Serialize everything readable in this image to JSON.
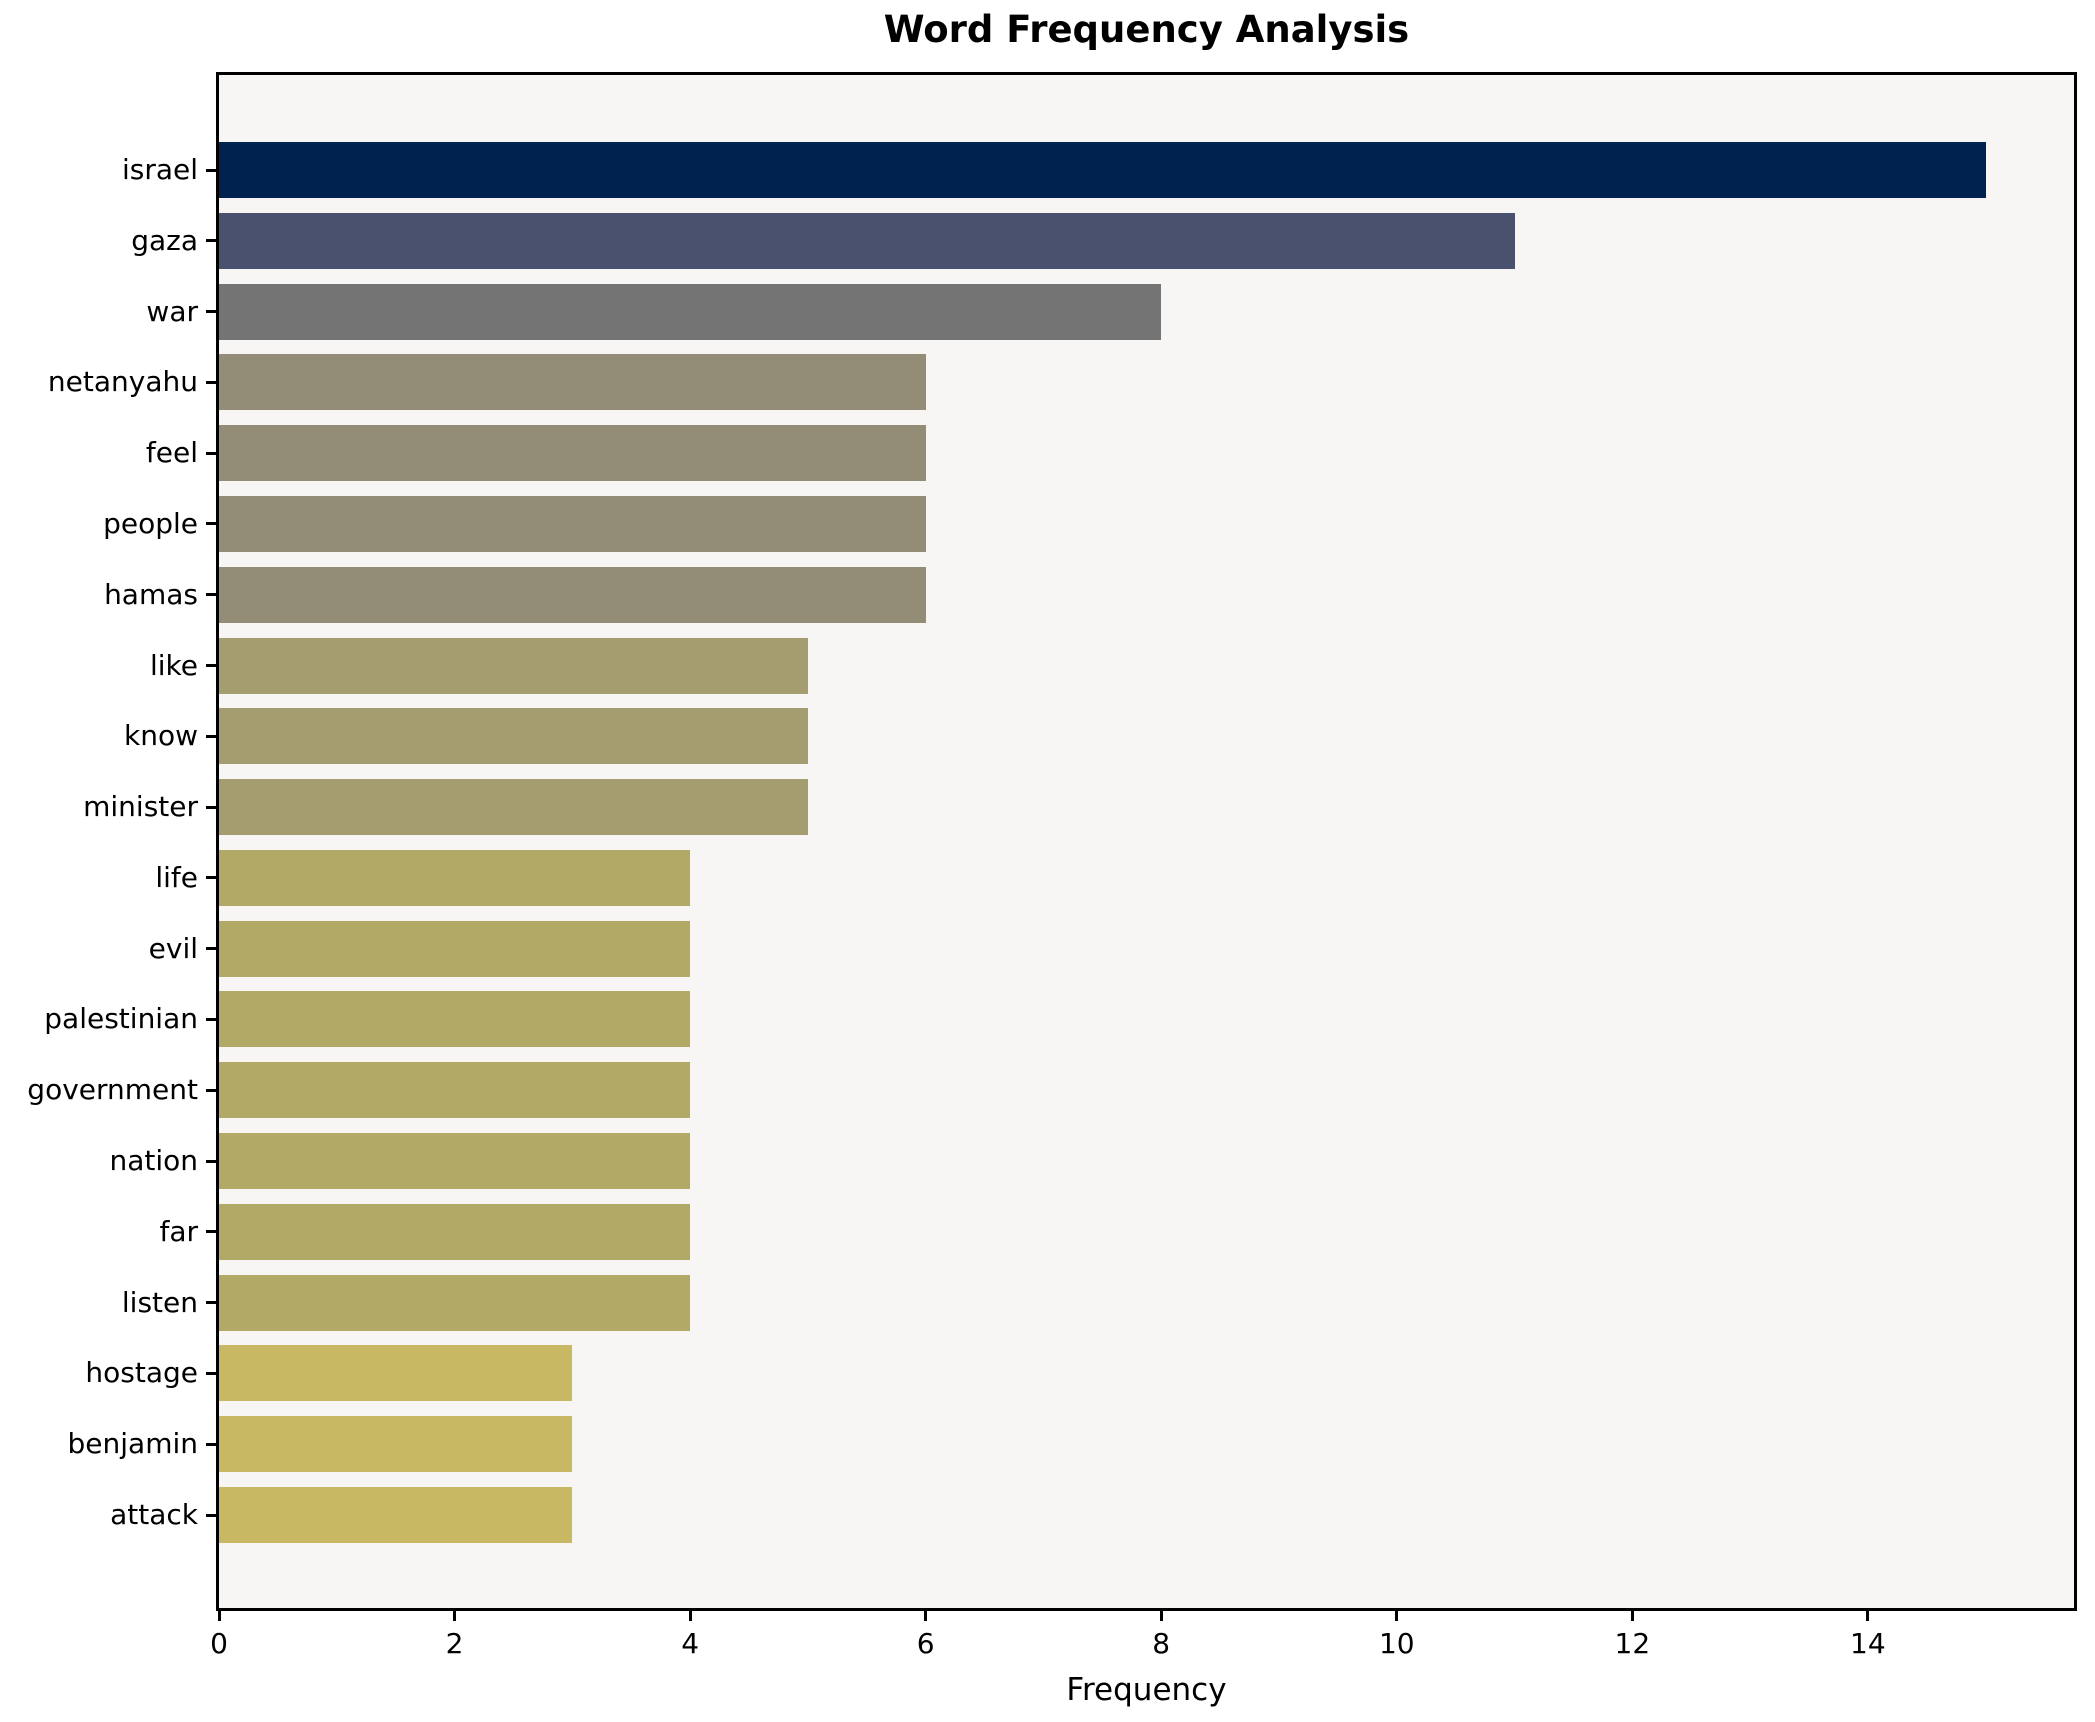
{
  "title": "Word Frequency Analysis",
  "chart_data": {
    "type": "bar",
    "orientation": "horizontal",
    "title": "Word Frequency Analysis",
    "xlabel": "Frequency",
    "ylabel": "",
    "categories": [
      "israel",
      "gaza",
      "war",
      "netanyahu",
      "feel",
      "people",
      "hamas",
      "like",
      "know",
      "minister",
      "life",
      "evil",
      "palestinian",
      "government",
      "nation",
      "far",
      "listen",
      "hostage",
      "benjamin",
      "attack"
    ],
    "values": [
      15,
      11,
      8,
      6,
      6,
      6,
      6,
      5,
      5,
      5,
      4,
      4,
      4,
      4,
      4,
      4,
      4,
      3,
      3,
      3
    ],
    "bar_colors": [
      "#00224E",
      "#49516E",
      "#747474",
      "#938D77",
      "#938D77",
      "#938D77",
      "#938D77",
      "#A49D70",
      "#A49D70",
      "#A49D70",
      "#B2A967",
      "#B2A967",
      "#B2A967",
      "#B2A967",
      "#B2A967",
      "#B2A967",
      "#B2A967",
      "#C8B763",
      "#C8B763",
      "#C8B763"
    ],
    "xticks": [
      0,
      2,
      4,
      6,
      8,
      10,
      12,
      14
    ],
    "xlim": [
      0,
      15.75
    ],
    "grid": false,
    "legend": "none",
    "colors": {
      "plot_background": "#F7F6F4",
      "outer_background": "#FFFFFF",
      "axis": "#000000",
      "text": "#000000"
    }
  }
}
